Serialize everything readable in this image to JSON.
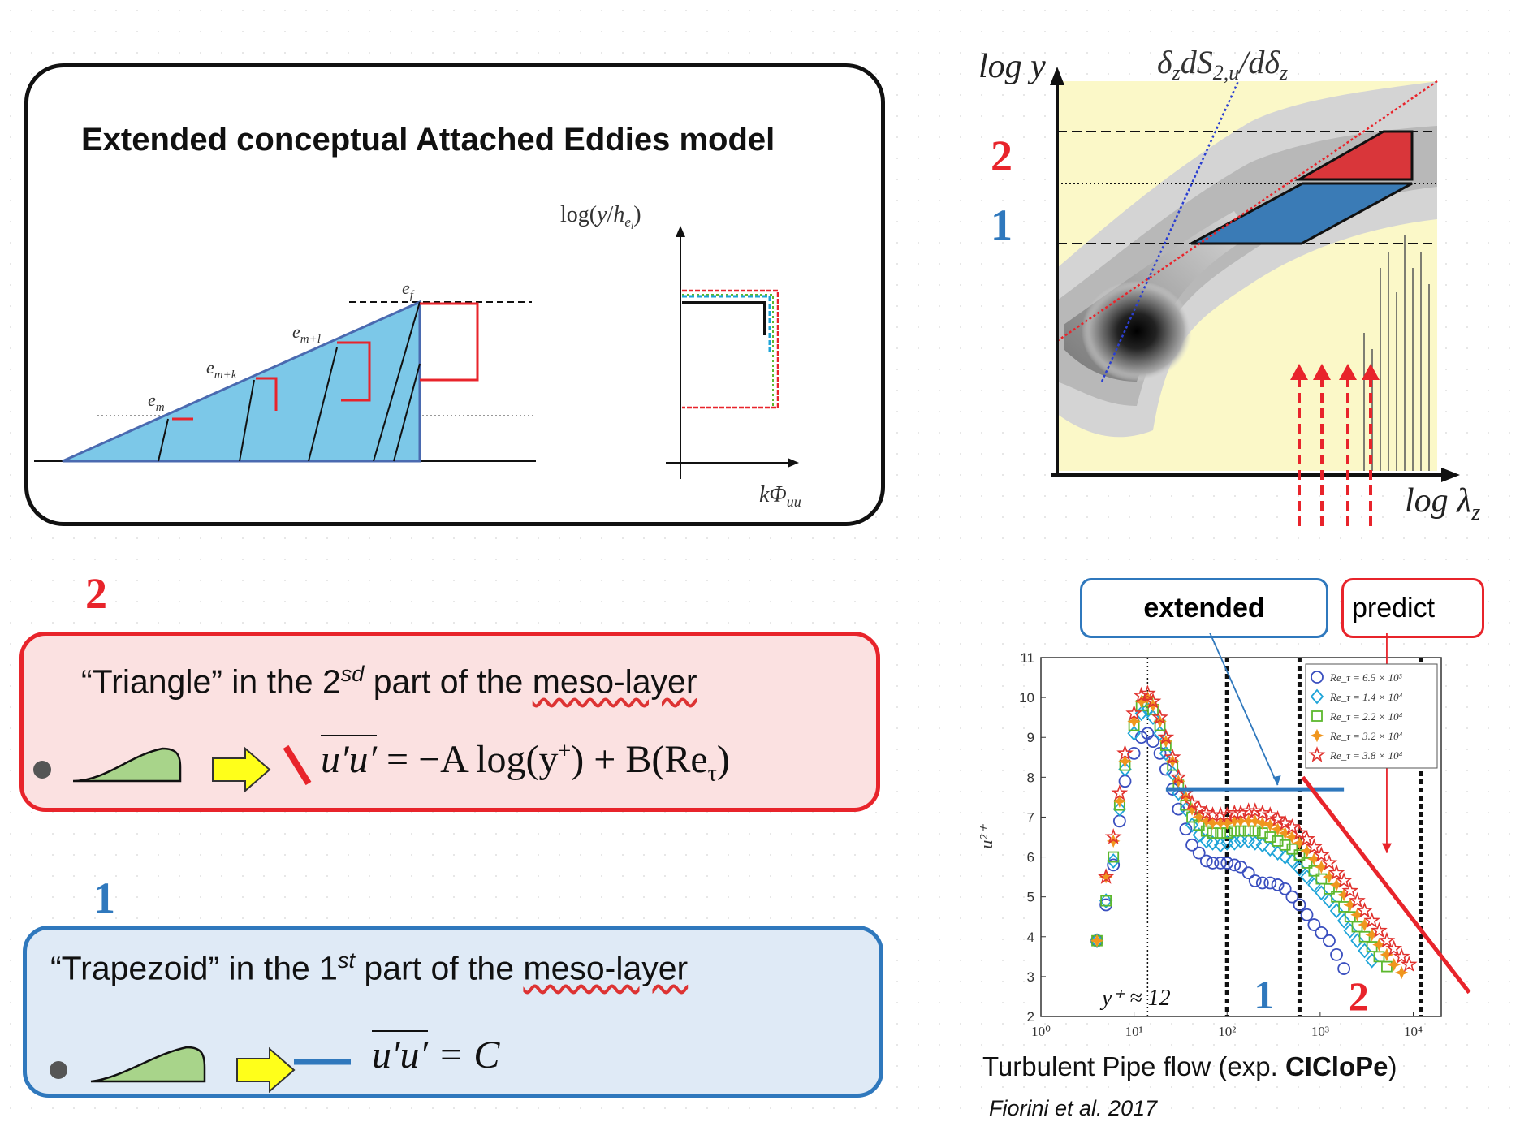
{
  "concept": {
    "title": "Extended conceptual Attached Eddies model",
    "eddy_labels": [
      "e_m",
      "e_m+k",
      "e_m+l",
      "e_f"
    ],
    "spectrum_ylabel": "log(y/h_e_i)",
    "spectrum_xlabel": "kΦ_uu"
  },
  "spectrogram": {
    "ylabel": "log y",
    "xlabel": "log λ_z",
    "title": "δ_z dS_2,u / dδ_z",
    "region_labels": [
      "2",
      "1"
    ],
    "colors": {
      "region_2": "#d9363a",
      "region_1": "#3a7bb6",
      "background": "#fbf8c8"
    }
  },
  "triangle_box": {
    "number": "2",
    "line1_pre": "“Triangle” in the 2",
    "line1_sup": "sd",
    "line1_post_a": " part of the ",
    "line1_post_u": "meso-layer",
    "equation_lhs": "u′u′",
    "equation_rhs_1": " = −A log(y",
    "equation_sup": "+",
    "equation_rhs_2": ") + B(Re",
    "equation_sub": "τ",
    "equation_rhs_3": ")"
  },
  "trapezoid_box": {
    "number": "1",
    "line1_pre": "“Trapezoid” in the 1",
    "line1_sup": "st",
    "line1_post_a": " part of the ",
    "line1_post_u": "meso-layer",
    "equation_lhs": "u′u′",
    "equation_rhs": " = C"
  },
  "callouts": {
    "extended": "extended",
    "predict": "predict"
  },
  "chart_data": {
    "type": "scatter",
    "title": "",
    "xlabel": "",
    "ylabel": "u²⁺",
    "x_scale": "log",
    "xlim": [
      1,
      20000
    ],
    "ylim": [
      2,
      11
    ],
    "x_ticks": [
      "10⁰",
      "10¹",
      "10²",
      "10³",
      "10⁴"
    ],
    "y_ticks": [
      "2",
      "3",
      "4",
      "5",
      "6",
      "7",
      "8",
      "9",
      "10",
      "11"
    ],
    "legend_position": "top-right",
    "annotations": [
      "y⁺ ≈ 12",
      "1",
      "2"
    ],
    "series": [
      {
        "name": "Re_τ = 6.5 × 10³",
        "marker": "circle",
        "color": "#3a4fbf",
        "x": [
          4,
          5,
          6,
          7,
          8,
          10,
          12,
          14,
          16,
          19,
          22,
          26,
          30,
          36,
          42,
          50,
          60,
          70,
          85,
          100,
          120,
          140,
          170,
          200,
          240,
          290,
          350,
          420,
          500,
          600,
          720,
          860,
          1030,
          1250,
          1500,
          1800
        ],
        "y": [
          3.9,
          4.8,
          5.8,
          6.9,
          7.9,
          8.6,
          9.0,
          9.1,
          8.9,
          8.6,
          8.2,
          7.7,
          7.2,
          6.7,
          6.3,
          6.1,
          5.9,
          5.85,
          5.85,
          5.85,
          5.8,
          5.75,
          5.6,
          5.4,
          5.35,
          5.35,
          5.3,
          5.2,
          5.0,
          4.8,
          4.55,
          4.3,
          4.1,
          3.9,
          3.55,
          3.2
        ]
      },
      {
        "name": "Re_τ = 1.4 × 10⁴",
        "marker": "diamond",
        "color": "#1ea4d8",
        "x": [
          4,
          5,
          6,
          7,
          8,
          10,
          12,
          14,
          16,
          19,
          22,
          26,
          30,
          36,
          42,
          50,
          60,
          70,
          85,
          100,
          120,
          140,
          170,
          200,
          240,
          290,
          350,
          420,
          500,
          600,
          720,
          860,
          1030,
          1250,
          1500,
          1800,
          2100,
          2500,
          3000,
          3600
        ],
        "y": [
          3.9,
          4.9,
          5.9,
          7.2,
          8.2,
          9.1,
          9.6,
          9.7,
          9.5,
          9.1,
          8.6,
          8.1,
          7.6,
          7.2,
          6.8,
          6.55,
          6.4,
          6.35,
          6.3,
          6.35,
          6.35,
          6.4,
          6.4,
          6.35,
          6.3,
          6.2,
          6.1,
          6.0,
          5.9,
          5.7,
          5.5,
          5.3,
          5.1,
          4.9,
          4.65,
          4.4,
          4.15,
          3.9,
          3.65,
          3.4
        ]
      },
      {
        "name": "Re_τ = 2.2 × 10⁴",
        "marker": "square",
        "color": "#5cb82e",
        "x": [
          4,
          5,
          6,
          7,
          8,
          10,
          12,
          14,
          16,
          19,
          22,
          26,
          30,
          36,
          42,
          50,
          60,
          70,
          85,
          100,
          120,
          140,
          170,
          200,
          240,
          290,
          350,
          420,
          500,
          600,
          720,
          860,
          1030,
          1250,
          1500,
          1800,
          2100,
          2500,
          3000,
          3600,
          4300,
          5200
        ],
        "y": [
          3.9,
          4.9,
          6.0,
          7.3,
          8.3,
          9.3,
          9.8,
          9.9,
          9.7,
          9.3,
          8.8,
          8.3,
          7.8,
          7.3,
          7.0,
          6.8,
          6.65,
          6.6,
          6.6,
          6.6,
          6.65,
          6.65,
          6.65,
          6.65,
          6.6,
          6.5,
          6.4,
          6.3,
          6.2,
          6.05,
          5.85,
          5.65,
          5.45,
          5.2,
          5.0,
          4.75,
          4.5,
          4.25,
          4.0,
          3.75,
          3.5,
          3.25
        ]
      },
      {
        "name": "Re_τ = 3.2 × 10⁴",
        "marker": "asterisk",
        "color": "#f0961e",
        "x": [
          4,
          5,
          6,
          7,
          8,
          10,
          12,
          14,
          16,
          19,
          22,
          26,
          30,
          36,
          42,
          50,
          60,
          70,
          85,
          100,
          120,
          140,
          170,
          200,
          240,
          290,
          350,
          420,
          500,
          600,
          720,
          860,
          1030,
          1250,
          1500,
          1800,
          2100,
          2500,
          3000,
          3600,
          4300,
          5200,
          6200,
          7500
        ],
        "y": [
          3.9,
          5.5,
          6.4,
          7.4,
          8.4,
          9.4,
          9.9,
          10.0,
          9.8,
          9.4,
          8.9,
          8.4,
          7.9,
          7.5,
          7.2,
          7.0,
          6.9,
          6.85,
          6.85,
          6.85,
          6.9,
          6.9,
          6.9,
          6.9,
          6.85,
          6.8,
          6.7,
          6.6,
          6.5,
          6.35,
          6.15,
          5.95,
          5.75,
          5.5,
          5.3,
          5.05,
          4.8,
          4.55,
          4.3,
          4.05,
          3.8,
          3.55,
          3.3,
          3.1
        ]
      },
      {
        "name": "Re_τ = 3.8 × 10⁴",
        "marker": "star",
        "color": "#e0322e",
        "x": [
          5,
          6,
          7,
          8,
          10,
          12,
          14,
          16,
          19,
          22,
          26,
          30,
          36,
          42,
          50,
          60,
          70,
          85,
          100,
          120,
          140,
          170,
          200,
          240,
          290,
          350,
          420,
          500,
          600,
          720,
          860,
          1030,
          1250,
          1500,
          1800,
          2100,
          2500,
          3000,
          3600,
          4300,
          5200,
          6200,
          7500,
          9000
        ],
        "y": [
          5.5,
          6.5,
          7.6,
          8.6,
          9.6,
          10.05,
          10.1,
          9.9,
          9.5,
          9.0,
          8.5,
          8.0,
          7.6,
          7.35,
          7.2,
          7.1,
          7.05,
          7.05,
          7.05,
          7.1,
          7.1,
          7.15,
          7.15,
          7.1,
          7.05,
          6.95,
          6.85,
          6.75,
          6.6,
          6.45,
          6.25,
          6.05,
          5.85,
          5.6,
          5.4,
          5.15,
          4.9,
          4.65,
          4.4,
          4.15,
          3.9,
          3.7,
          3.5,
          3.3
        ]
      }
    ]
  },
  "caption": {
    "text_pre": "Turbulent Pipe flow (exp. ",
    "text_bold": "CICloPe",
    "text_post": ")",
    "citation": "Fiorini et al. 2017"
  }
}
